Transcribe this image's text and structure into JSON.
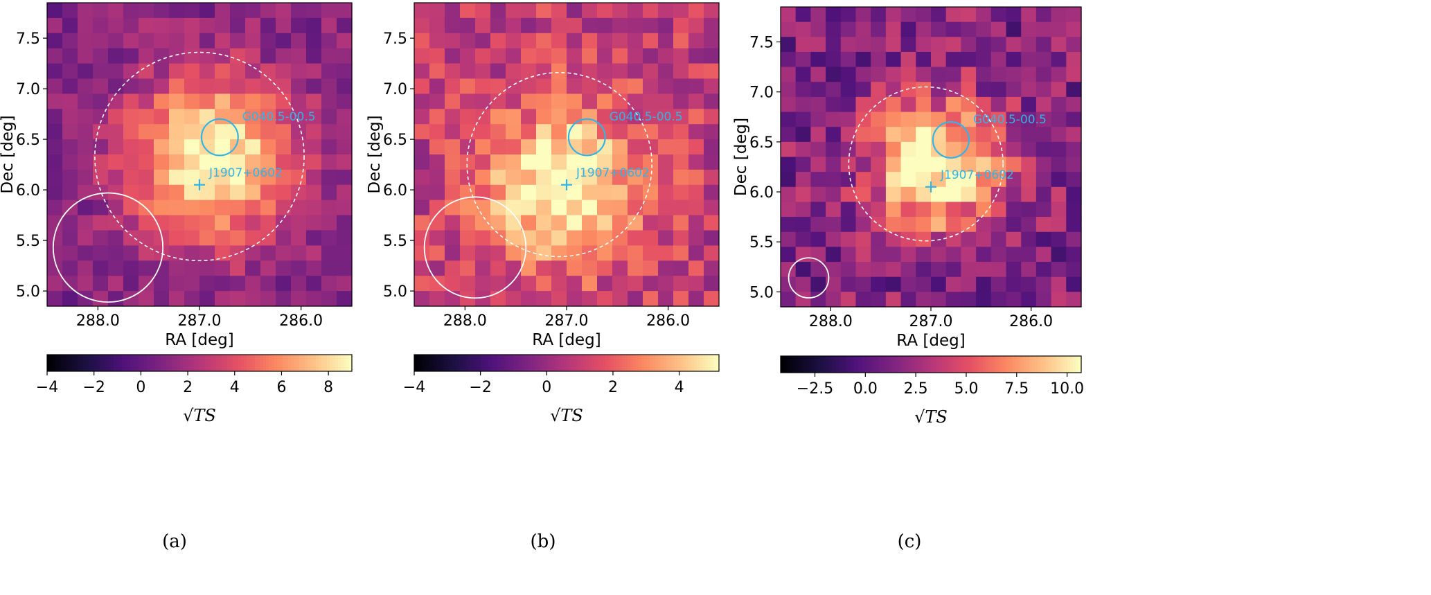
{
  "colors": {
    "annotation": "#32b4e6",
    "circle": "#ffffff",
    "colormap": "magma"
  },
  "chart_data": [
    {
      "type": "heatmap",
      "caption": "(a)",
      "xlabel": "RA [deg]",
      "ylabel": "Dec [deg]",
      "xlim": [
        288.5,
        285.5
      ],
      "ylim": [
        4.85,
        7.85
      ],
      "xticks": [
        288.0,
        287.0,
        286.0
      ],
      "xtick_labels": [
        "288.0",
        "287.0",
        "286.0"
      ],
      "yticks": [
        5.0,
        5.5,
        6.0,
        6.5,
        7.0,
        7.5
      ],
      "ytick_labels": [
        "5.0",
        "5.5",
        "6.0",
        "6.5",
        "7.0",
        "7.5"
      ],
      "grid_size": [
        20,
        20
      ],
      "hotspot": {
        "ra": 286.88,
        "dec": 6.3,
        "sigma": 0.55,
        "peak": 8.6
      },
      "colorbar": {
        "min": -4,
        "max": 9,
        "ticks": [
          -4,
          -2,
          0,
          2,
          4,
          6,
          8
        ],
        "tick_labels": [
          "−4",
          "−2",
          "0",
          "2",
          "4",
          "6",
          "8"
        ],
        "label": "√TS"
      },
      "dashed_circle": {
        "ra": 287.0,
        "dec": 6.33,
        "r": 1.03
      },
      "solid_circle": {
        "ra": 287.9,
        "dec": 5.43,
        "r": 0.54
      },
      "source_circle": {
        "name": "G040.5-00.5",
        "ra": 286.8,
        "dec": 6.52,
        "r": 0.18
      },
      "source_cross": {
        "name": "J1907+0602",
        "ra": 287.0,
        "dec": 6.05
      }
    },
    {
      "type": "heatmap",
      "caption": "(b)",
      "xlabel": "RA [deg]",
      "ylabel": "Dec [deg]",
      "xlim": [
        288.5,
        285.5
      ],
      "ylim": [
        4.85,
        7.85
      ],
      "xticks": [
        288.0,
        287.0,
        286.0
      ],
      "xtick_labels": [
        "288.0",
        "287.0",
        "286.0"
      ],
      "yticks": [
        5.0,
        5.5,
        6.0,
        6.5,
        7.0,
        7.5
      ],
      "ytick_labels": [
        "5.0",
        "5.5",
        "6.0",
        "6.5",
        "7.0",
        "7.5"
      ],
      "grid_size": [
        20,
        20
      ],
      "hotspot": {
        "ra": 287.05,
        "dec": 6.05,
        "sigma": 0.5,
        "peak": 4.9
      },
      "colorbar": {
        "min": -4,
        "max": 5.2,
        "ticks": [
          -4,
          -2,
          0,
          2,
          4
        ],
        "tick_labels": [
          "−4",
          "−2",
          "0",
          "2",
          "4"
        ],
        "label": "√TS"
      },
      "dashed_circle": {
        "ra": 287.07,
        "dec": 6.25,
        "r": 0.91
      },
      "solid_circle": {
        "ra": 287.9,
        "dec": 5.43,
        "r": 0.5
      },
      "source_circle": {
        "name": "G040.5-00.5",
        "ra": 286.8,
        "dec": 6.52,
        "r": 0.18
      },
      "source_cross": {
        "name": "J1907+0602",
        "ra": 287.0,
        "dec": 6.05
      }
    },
    {
      "type": "heatmap",
      "caption": "(c)",
      "xlabel": "RA [deg]",
      "ylabel": "Dec [deg]",
      "xlim": [
        288.5,
        285.5
      ],
      "ylim": [
        4.85,
        7.85
      ],
      "xticks": [
        288.0,
        287.0,
        286.0
      ],
      "xtick_labels": [
        "288.0",
        "287.0",
        "286.0"
      ],
      "yticks": [
        5.0,
        5.5,
        6.0,
        6.5,
        7.0,
        7.5
      ],
      "ytick_labels": [
        "5.0",
        "5.5",
        "6.0",
        "6.5",
        "7.0",
        "7.5"
      ],
      "grid_size": [
        20,
        20
      ],
      "hotspot": {
        "ra": 286.95,
        "dec": 6.25,
        "sigma": 0.45,
        "peak": 10.2
      },
      "colorbar": {
        "min": -4.2,
        "max": 10.7,
        "ticks": [
          -2.5,
          0.0,
          2.5,
          5.0,
          7.5,
          10.0
        ],
        "tick_labels": [
          "−2.5",
          "0.0",
          "2.5",
          "5.0",
          "7.5",
          "10.0"
        ],
        "label": "√TS"
      },
      "dashed_circle": {
        "ra": 287.05,
        "dec": 6.28,
        "r": 0.77
      },
      "solid_circle": {
        "ra": 288.22,
        "dec": 5.14,
        "r": 0.2
      },
      "source_circle": {
        "name": "G040.5-00.5",
        "ra": 286.8,
        "dec": 6.52,
        "r": 0.18
      },
      "source_cross": {
        "name": "J1907+0602",
        "ra": 287.0,
        "dec": 6.05
      }
    }
  ]
}
